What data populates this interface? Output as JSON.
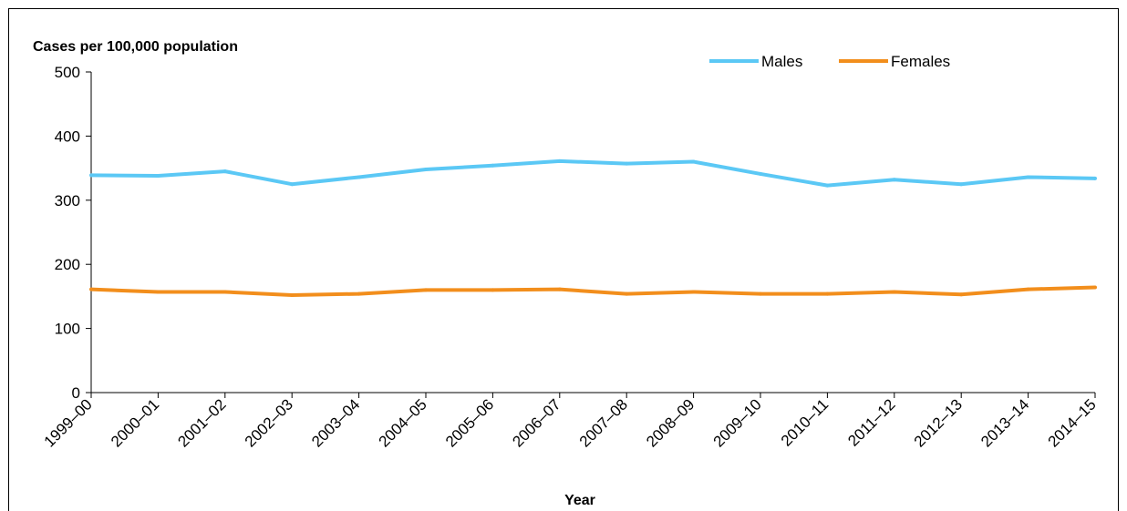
{
  "chart_data": {
    "type": "line",
    "ylabel": "Cases per 100,000 population",
    "xlabel": "Year",
    "categories": [
      "1999–00",
      "2000–01",
      "2001–02",
      "2002–03",
      "2003–04",
      "2004–05",
      "2005–06",
      "2006–07",
      "2007–08",
      "2008–09",
      "2009–10",
      "2010–11",
      "2011–12",
      "2012–13",
      "2013–14",
      "2014–15"
    ],
    "ylim": [
      0,
      500
    ],
    "yticks": [
      0,
      100,
      200,
      300,
      400,
      500
    ],
    "grid": false,
    "legend_position": "top-right",
    "series": [
      {
        "name": "Males",
        "color": "#5BC8F5",
        "values": [
          339,
          338,
          345,
          325,
          336,
          348,
          354,
          361,
          357,
          360,
          341,
          323,
          332,
          325,
          336,
          334
        ]
      },
      {
        "name": "Females",
        "color": "#F28E1C",
        "values": [
          161,
          157,
          157,
          152,
          154,
          160,
          160,
          161,
          154,
          157,
          154,
          154,
          157,
          153,
          161,
          164
        ]
      }
    ]
  }
}
